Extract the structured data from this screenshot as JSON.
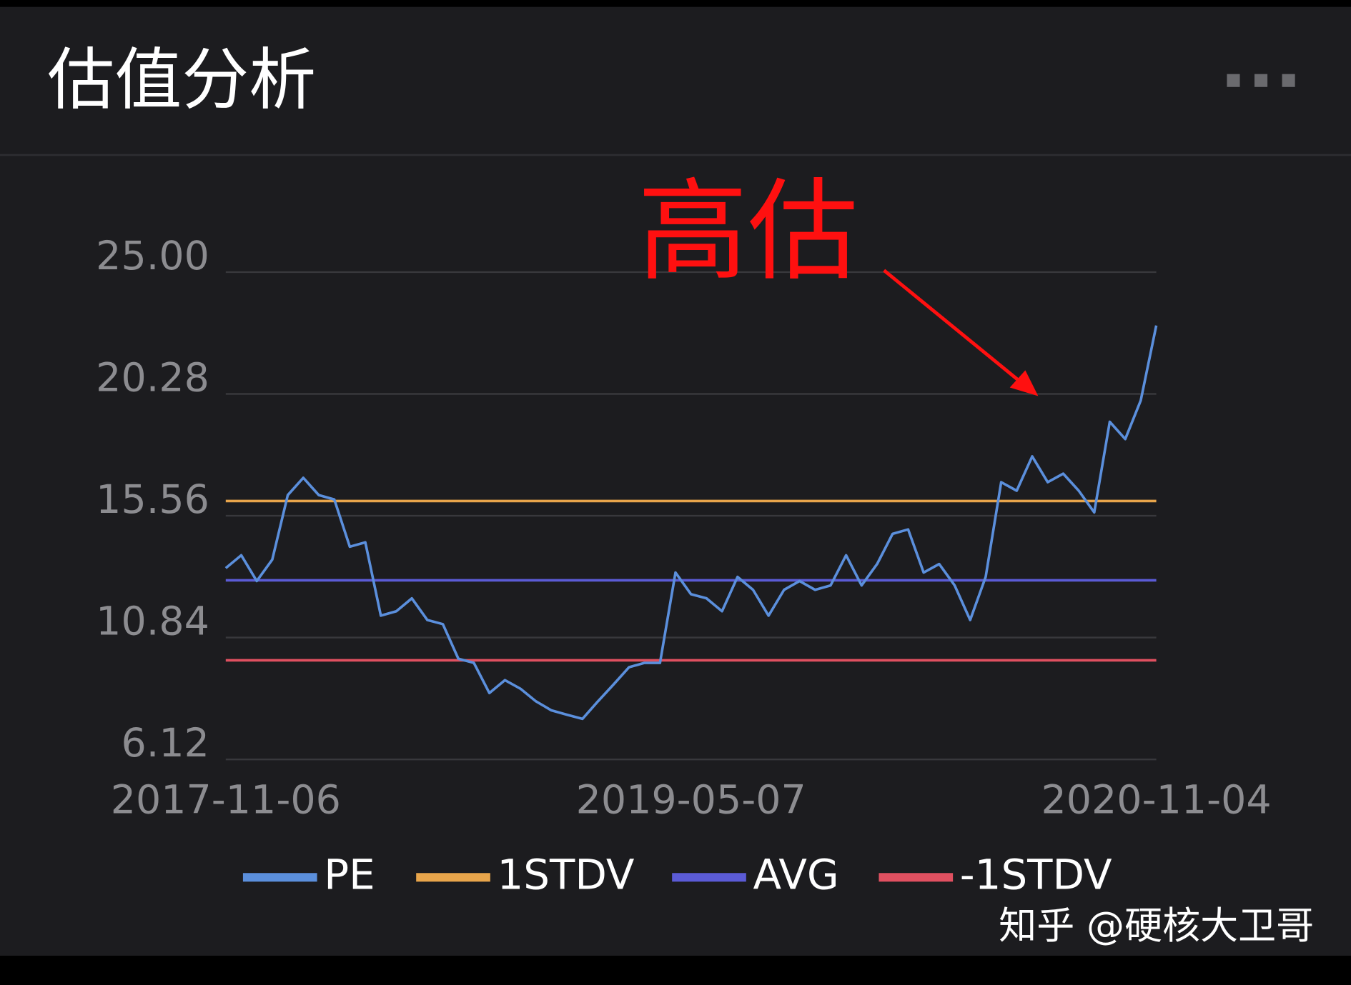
{
  "header": {
    "title": "估值分析"
  },
  "chart_data": {
    "type": "line",
    "annotation": "高估",
    "categories": [
      "2017-11-06",
      null,
      null,
      null,
      null,
      null,
      null,
      null,
      null,
      null,
      null,
      null,
      null,
      null,
      null,
      null,
      null,
      null,
      null,
      null,
      null,
      null,
      null,
      null,
      null,
      null,
      null,
      null,
      null,
      null,
      "2019-05-07",
      null,
      null,
      null,
      null,
      null,
      null,
      null,
      null,
      null,
      null,
      null,
      null,
      null,
      null,
      null,
      null,
      null,
      null,
      null,
      null,
      null,
      null,
      null,
      null,
      null,
      null,
      null,
      null,
      null,
      "2020-11-04"
    ],
    "ylim": [
      6.12,
      25
    ],
    "yticks": [
      6.12,
      10.84,
      15.56,
      20.28,
      {
        "value": 25,
        "label": "25.00"
      }
    ],
    "grid": true,
    "series": [
      {
        "name": "PE",
        "color": "#5b8fdc",
        "values": [
          13.53,
          14.03,
          13.03,
          13.86,
          16.36,
          17.03,
          16.36,
          16.19,
          14.36,
          14.53,
          11.69,
          11.86,
          12.36,
          11.52,
          11.36,
          10.02,
          9.86,
          8.69,
          9.19,
          8.86,
          8.37,
          8.02,
          7.85,
          7.69,
          8.37,
          9.02,
          9.69,
          9.86,
          9.86,
          13.36,
          12.52,
          12.36,
          11.86,
          13.19,
          12.69,
          11.69,
          12.69,
          13.03,
          12.69,
          12.86,
          14.03,
          12.86,
          13.69,
          14.86,
          15.03,
          13.36,
          13.69,
          12.86,
          11.52,
          13.19,
          16.86,
          16.53,
          17.86,
          16.86,
          17.19,
          16.53,
          15.69,
          19.2,
          18.53,
          20.03,
          22.93
        ]
      },
      {
        "name": "1STDV",
        "color": "#e8a54b",
        "values": [
          16.13,
          16.13,
          16.13,
          16.13,
          16.13,
          16.13,
          16.13,
          16.13,
          16.13,
          16.13,
          16.13,
          16.13,
          16.13,
          16.13,
          16.13,
          16.13,
          16.13,
          16.13,
          16.13,
          16.13,
          16.13,
          16.13,
          16.13,
          16.13,
          16.13,
          16.13,
          16.13,
          16.13,
          16.13,
          16.13,
          16.13,
          16.13,
          16.13,
          16.13,
          16.13,
          16.13,
          16.13,
          16.13,
          16.13,
          16.13,
          16.13,
          16.13,
          16.13,
          16.13,
          16.13,
          16.13,
          16.13,
          16.13,
          16.13,
          16.13,
          16.13,
          16.13,
          16.13,
          16.13,
          16.13,
          16.13,
          16.13,
          16.13,
          16.13,
          16.13,
          16.13
        ]
      },
      {
        "name": "AVG",
        "color": "#5b5bd6",
        "values": [
          13.06,
          13.06,
          13.06,
          13.06,
          13.06,
          13.06,
          13.06,
          13.06,
          13.06,
          13.06,
          13.06,
          13.06,
          13.06,
          13.06,
          13.06,
          13.06,
          13.06,
          13.06,
          13.06,
          13.06,
          13.06,
          13.06,
          13.06,
          13.06,
          13.06,
          13.06,
          13.06,
          13.06,
          13.06,
          13.06,
          13.06,
          13.06,
          13.06,
          13.06,
          13.06,
          13.06,
          13.06,
          13.06,
          13.06,
          13.06,
          13.06,
          13.06,
          13.06,
          13.06,
          13.06,
          13.06,
          13.06,
          13.06,
          13.06,
          13.06,
          13.06,
          13.06,
          13.06,
          13.06,
          13.06,
          13.06,
          13.06,
          13.06,
          13.06,
          13.06,
          13.06
        ]
      },
      {
        "name": "-1STDV",
        "color": "#e05060",
        "values": [
          9.96,
          9.96,
          9.96,
          9.96,
          9.96,
          9.96,
          9.96,
          9.96,
          9.96,
          9.96,
          9.96,
          9.96,
          9.96,
          9.96,
          9.96,
          9.96,
          9.96,
          9.96,
          9.96,
          9.96,
          9.96,
          9.96,
          9.96,
          9.96,
          9.96,
          9.96,
          9.96,
          9.96,
          9.96,
          9.96,
          9.96,
          9.96,
          9.96,
          9.96,
          9.96,
          9.96,
          9.96,
          9.96,
          9.96,
          9.96,
          9.96,
          9.96,
          9.96,
          9.96,
          9.96,
          9.96,
          9.96,
          9.96,
          9.96,
          9.96,
          9.96,
          9.96,
          9.96,
          9.96,
          9.96,
          9.96,
          9.96,
          9.96,
          9.96,
          9.96,
          9.96
        ]
      }
    ]
  },
  "watermark": "知乎 @硬核大卫哥"
}
